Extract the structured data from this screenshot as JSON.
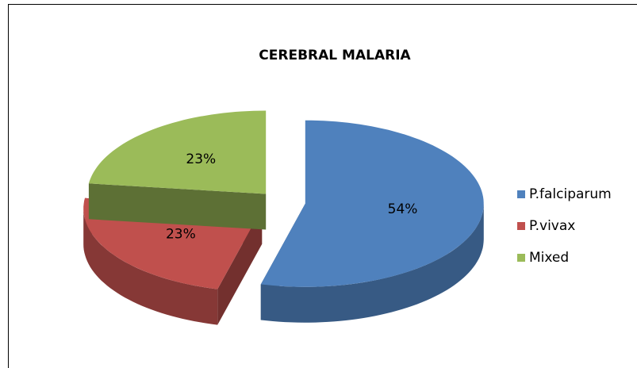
{
  "chart_data": {
    "type": "pie",
    "title": "CEREBRAL MALARIA",
    "categories": [
      "P.falciparum",
      "P.vivax",
      "Mixed"
    ],
    "values": [
      54,
      23,
      23
    ],
    "value_labels": [
      "54%",
      "23%",
      "23%"
    ],
    "colors": [
      "#4f81bd",
      "#c0504d",
      "#9bbb59"
    ],
    "legend": "right"
  }
}
